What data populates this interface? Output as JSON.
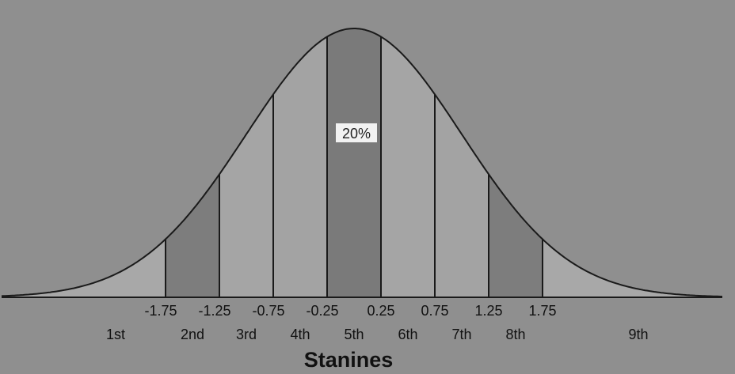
{
  "chart_data": {
    "type": "area",
    "distribution": "normal",
    "x_range": [
      -3.0,
      3.0
    ],
    "boundaries": [
      -1.75,
      -1.25,
      -0.75,
      -0.25,
      0.25,
      0.75,
      1.25,
      1.75
    ],
    "boundary_labels": [
      "-1.75",
      "-1.25",
      "-0.75",
      "-0.25",
      "0.25",
      "0.75",
      "1.25",
      "1.75"
    ],
    "stanines": [
      "1st",
      "2nd",
      "3rd",
      "4th",
      "5th",
      "6th",
      "7th",
      "8th",
      "9th"
    ],
    "bands": [
      {
        "from": -3.0,
        "to": -1.75,
        "shade": "#a8a8a8"
      },
      {
        "from": -1.75,
        "to": -1.25,
        "shade": "#7d7d7d"
      },
      {
        "from": -1.25,
        "to": -0.75,
        "shade": "#a5a5a5"
      },
      {
        "from": -0.75,
        "to": -0.25,
        "shade": "#a3a3a3"
      },
      {
        "from": -0.25,
        "to": 0.25,
        "shade": "#7a7a7a"
      },
      {
        "from": 0.25,
        "to": 0.75,
        "shade": "#a5a5a5"
      },
      {
        "from": 0.75,
        "to": 1.25,
        "shade": "#a3a3a3"
      },
      {
        "from": 1.25,
        "to": 1.75,
        "shade": "#7d7d7d"
      },
      {
        "from": 1.75,
        "to": 3.0,
        "shade": "#a8a8a8"
      }
    ],
    "annotation": {
      "text": "20%",
      "stanine": "5th"
    },
    "xlabel": "Stanines"
  },
  "colors": {
    "background": "#8f8f8f",
    "outline": "#1a1a1a",
    "label_box": "#f2f2f2"
  }
}
